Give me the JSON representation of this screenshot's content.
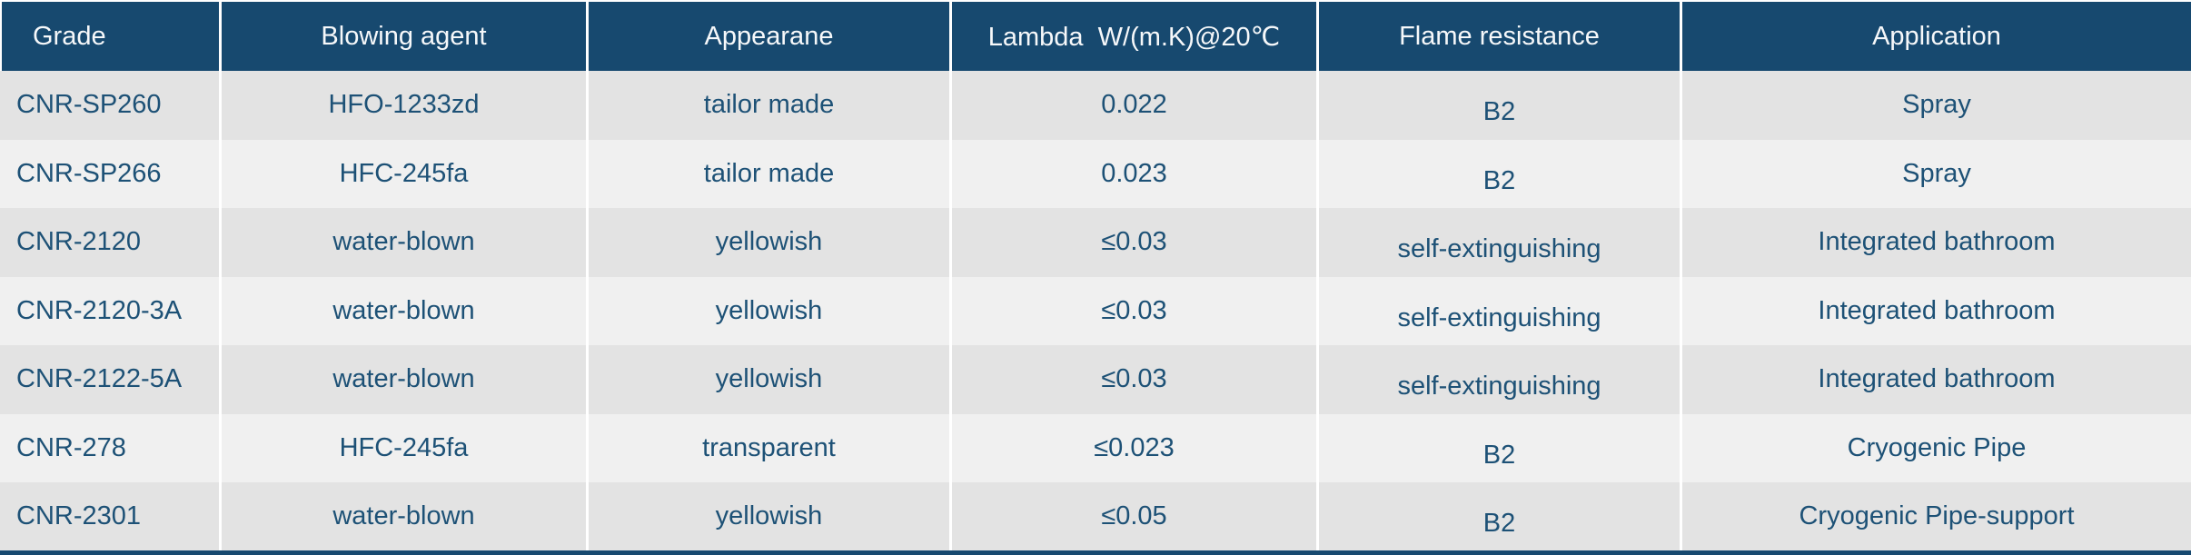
{
  "colors": {
    "header_background": "#17496F",
    "header_text": "#F6F8FA",
    "body_text": "#1D5176",
    "row_dark": "#E3E3E3",
    "row_light": "#F0F0F0",
    "separator": "#FFFFFF",
    "bottom_rule": "#17496F"
  },
  "chart_data": {
    "type": "table",
    "columns": [
      {
        "key": "grade",
        "label": "Grade"
      },
      {
        "key": "blowing-agent",
        "label": "Blowing agent"
      },
      {
        "key": "appearance",
        "label": "Appearane"
      },
      {
        "key": "lambda",
        "label": "Lambda  W/(m.K)@20℃"
      },
      {
        "key": "flame-resistance",
        "label": "Flame resistance"
      },
      {
        "key": "application",
        "label": "Application"
      }
    ],
    "rows": [
      [
        "CNR-SP260",
        "HFO-1233zd",
        "tailor made",
        "0.022",
        "B2",
        "Spray"
      ],
      [
        "CNR-SP266",
        "HFC-245fa",
        "tailor made",
        "0.023",
        "B2",
        "Spray"
      ],
      [
        "CNR-2120",
        "water-blown",
        "yellowish",
        "≤0.03",
        "self-extinguishing",
        "Integrated bathroom"
      ],
      [
        "CNR-2120-3A",
        "water-blown",
        "yellowish",
        "≤0.03",
        "self-extinguishing",
        "Integrated bathroom"
      ],
      [
        "CNR-2122-5A",
        "water-blown",
        "yellowish",
        "≤0.03",
        "self-extinguishing",
        "Integrated bathroom"
      ],
      [
        "CNR-278",
        "HFC-245fa",
        "transparent",
        "≤0.023",
        "B2",
        "Cryogenic Pipe"
      ],
      [
        "CNR-2301",
        "water-blown",
        "yellowish",
        "≤0.05",
        "B2",
        "Cryogenic Pipe-support"
      ]
    ]
  }
}
